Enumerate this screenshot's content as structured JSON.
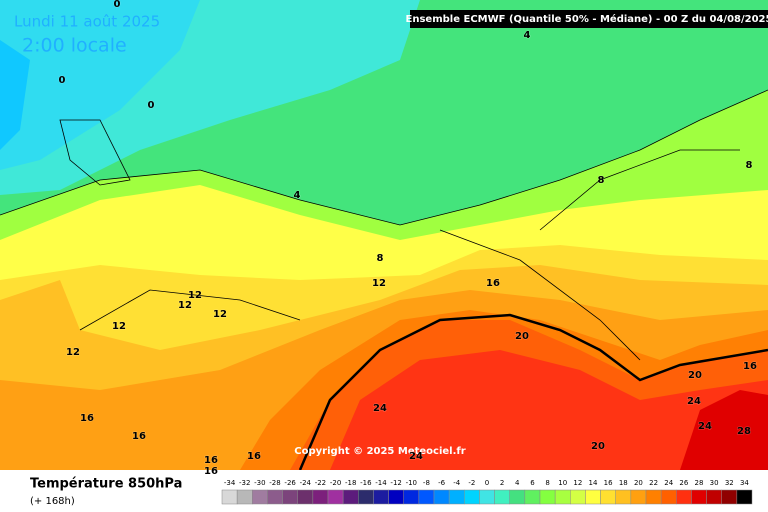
{
  "map": {
    "date": "Lundi 11 août 2025",
    "time": "2:00 locale",
    "header": "Ensemble ECMWF  (Quantile 50% - Médiane) - 00 Z du 04/08/2025",
    "copyright": "Copyright © 2025 Meteociel.fr",
    "variable": "Température 850hPa",
    "lead_time": "(+ 168h)",
    "contour_labels": [
      4,
      0,
      0,
      0,
      4,
      8,
      8,
      8,
      12,
      16,
      12,
      12,
      12,
      12,
      12,
      20,
      16,
      20,
      24,
      24,
      24,
      28,
      20,
      24,
      16,
      16,
      16,
      16,
      16
    ],
    "scale_labels": [
      -34,
      -32,
      -30,
      -28,
      -26,
      -24,
      -22,
      -20,
      -18,
      -16,
      -14,
      -12,
      -10,
      -8,
      -6,
      -4,
      -2,
      0,
      2,
      4,
      6,
      8,
      10,
      12,
      14,
      16,
      18,
      20,
      22,
      24,
      26,
      28,
      30,
      32,
      34
    ],
    "scale_colors": [
      "#d8d8d8",
      "#b8b8b8",
      "#a07ca0",
      "#8c5c8c",
      "#7c447c",
      "#6c306c",
      "#7c207c",
      "#a030a0",
      "#5c1c7c",
      "#2c2c6c",
      "#1c1ca0",
      "#0000c0",
      "#0028e0",
      "#0058ff",
      "#0088ff",
      "#00b0ff",
      "#00d4ff",
      "#40e4e4",
      "#40f0c0",
      "#44e080",
      "#60f060",
      "#84ff40",
      "#a8ff40",
      "#d4ff44",
      "#ffff40",
      "#ffe030",
      "#ffc020",
      "#ffa010",
      "#ff8000",
      "#ff6000",
      "#ff3010",
      "#e00000",
      "#c00000",
      "#900000",
      "#000000"
    ]
  }
}
